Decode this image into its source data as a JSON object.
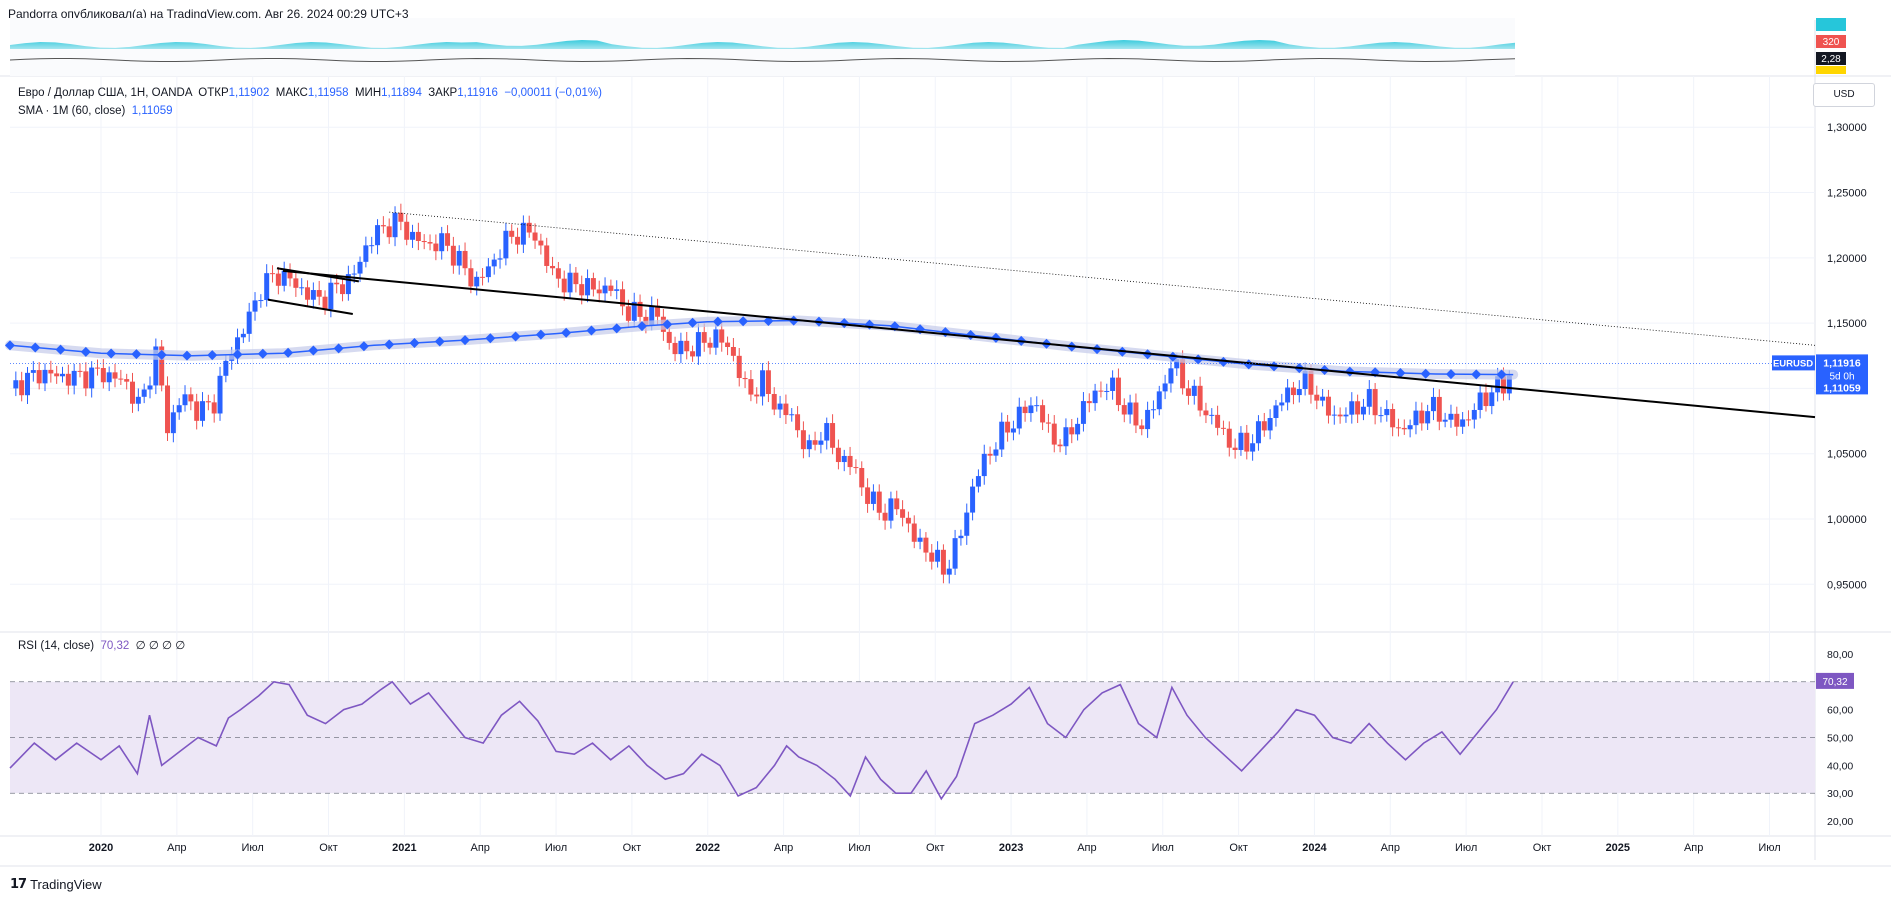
{
  "header": {
    "published_text": "Pandorra опубликовал(а) на TradingView.com, Авг 26, 2024 00:29 UTC+3"
  },
  "legend": {
    "symbol_desc": "Евро / Доллар США, 1H, OANDA",
    "open_label": "ОТКР",
    "open_value": "1,11902",
    "high_label": "МАКС",
    "high_value": "1,11958",
    "low_label": "МИН",
    "low_value": "1,11894",
    "close_label": "ЗАКР",
    "close_value": "1,11916",
    "change_value": "−0,00011 (−0,01%)",
    "sma_label": "SMA · 1M (60, close)",
    "sma_value": "1,11059"
  },
  "rsi_legend": {
    "label": "RSI (14, close)",
    "value": "70,32",
    "extras": "∅ ∅ ∅ ∅"
  },
  "currency_button": "USD",
  "footer": {
    "brand": "TradingView"
  },
  "colors": {
    "up": "#2962ff",
    "down": "#ef5350",
    "sma": "#2962ff",
    "rsi": "#7e57c2",
    "rsi_band": "#ede7f6",
    "grid": "#f0f3fa",
    "trend": "#000000",
    "badge_bg": "#2962ff",
    "badge_dark": "#131722",
    "badge_red": "#ef5350",
    "badge_yellow": "#ffd600",
    "volume_fill": "#26c6da"
  },
  "top_panel": {
    "badges": [
      "320",
      "2,28"
    ]
  },
  "chart_data": [
    {
      "type": "candlestick",
      "title": "Евро / Доллар США, OANDA",
      "symbol": "EURUSD",
      "price_axis_ticks": [
        "1,30000",
        "1,25000",
        "1,20000",
        "1,15000",
        "1,10000",
        "1,05000",
        "1,00000",
        "0,95000"
      ],
      "price_axis_values": [
        1.3,
        1.25,
        1.2,
        1.15,
        1.1,
        1.05,
        1.0,
        0.95
      ],
      "ylim": [
        0.915,
        1.34
      ],
      "time_axis_labels": [
        "2020",
        "Апр",
        "Июл",
        "Окт",
        "2021",
        "Апр",
        "Июл",
        "Окт",
        "2022",
        "Апр",
        "Июл",
        "Окт",
        "2023",
        "Апр",
        "Июл",
        "Окт",
        "2024",
        "Апр",
        "Июл",
        "Окт",
        "2025",
        "Апр",
        "Июл"
      ],
      "time_axis_years": [
        2020.0,
        2020.25,
        2020.5,
        2020.75,
        2021.0,
        2021.25,
        2021.5,
        2021.75,
        2022.0,
        2022.25,
        2022.5,
        2022.75,
        2023.0,
        2023.25,
        2023.5,
        2023.75,
        2024.0,
        2024.25,
        2024.5,
        2024.75,
        2025.0,
        2025.25,
        2025.5
      ],
      "xlim": [
        2019.7,
        2025.65
      ],
      "last_price": {
        "symbol": "EURUSD",
        "value": "1,11916",
        "countdown": "5d 0h",
        "sma_value": "1,11059"
      },
      "price_path": [
        [
          2019.7,
          1.1
        ],
        [
          2019.8,
          1.112
        ],
        [
          2019.9,
          1.108
        ],
        [
          2020.0,
          1.112
        ],
        [
          2020.08,
          1.105
        ],
        [
          2020.13,
          1.085
        ],
        [
          2020.18,
          1.128
        ],
        [
          2020.22,
          1.07
        ],
        [
          2020.27,
          1.095
        ],
        [
          2020.32,
          1.082
        ],
        [
          2020.37,
          1.088
        ],
        [
          2020.42,
          1.125
        ],
        [
          2020.47,
          1.145
        ],
        [
          2020.53,
          1.178
        ],
        [
          2020.58,
          1.188
        ],
        [
          2020.63,
          1.182
        ],
        [
          2020.68,
          1.172
        ],
        [
          2020.73,
          1.168
        ],
        [
          2020.78,
          1.178
        ],
        [
          2020.83,
          1.185
        ],
        [
          2020.88,
          1.212
        ],
        [
          2020.93,
          1.223
        ],
        [
          2020.98,
          1.228
        ],
        [
          2021.03,
          1.215
        ],
        [
          2021.08,
          1.21
        ],
        [
          2021.13,
          1.212
        ],
        [
          2021.18,
          1.198
        ],
        [
          2021.23,
          1.18
        ],
        [
          2021.28,
          1.192
        ],
        [
          2021.33,
          1.212
        ],
        [
          2021.38,
          1.22
        ],
        [
          2021.43,
          1.218
        ],
        [
          2021.48,
          1.19
        ],
        [
          2021.53,
          1.18
        ],
        [
          2021.58,
          1.18
        ],
        [
          2021.63,
          1.175
        ],
        [
          2021.68,
          1.178
        ],
        [
          2021.73,
          1.16
        ],
        [
          2021.78,
          1.155
        ],
        [
          2021.83,
          1.158
        ],
        [
          2021.88,
          1.13
        ],
        [
          2021.93,
          1.13
        ],
        [
          2021.98,
          1.135
        ],
        [
          2022.03,
          1.14
        ],
        [
          2022.08,
          1.128
        ],
        [
          2022.13,
          1.095
        ],
        [
          2022.18,
          1.105
        ],
        [
          2022.23,
          1.085
        ],
        [
          2022.28,
          1.078
        ],
        [
          2022.33,
          1.05
        ],
        [
          2022.38,
          1.07
        ],
        [
          2022.43,
          1.048
        ],
        [
          2022.48,
          1.04
        ],
        [
          2022.53,
          1.015
        ],
        [
          2022.58,
          1.005
        ],
        [
          2022.63,
          1.01
        ],
        [
          2022.68,
          0.985
        ],
        [
          2022.73,
          0.975
        ],
        [
          2022.78,
          0.96
        ],
        [
          2022.83,
          0.985
        ],
        [
          2022.88,
          1.03
        ],
        [
          2022.93,
          1.052
        ],
        [
          2022.98,
          1.068
        ],
        [
          2023.03,
          1.08
        ],
        [
          2023.08,
          1.09
        ],
        [
          2023.13,
          1.062
        ],
        [
          2023.18,
          1.06
        ],
        [
          2023.23,
          1.082
        ],
        [
          2023.28,
          1.098
        ],
        [
          2023.33,
          1.102
        ],
        [
          2023.38,
          1.082
        ],
        [
          2023.43,
          1.072
        ],
        [
          2023.48,
          1.09
        ],
        [
          2023.53,
          1.12
        ],
        [
          2023.58,
          1.1
        ],
        [
          2023.63,
          1.085
        ],
        [
          2023.68,
          1.072
        ],
        [
          2023.73,
          1.055
        ],
        [
          2023.78,
          1.058
        ],
        [
          2023.83,
          1.07
        ],
        [
          2023.88,
          1.088
        ],
        [
          2023.93,
          1.1
        ],
        [
          2023.98,
          1.105
        ],
        [
          2024.03,
          1.085
        ],
        [
          2024.08,
          1.078
        ],
        [
          2024.13,
          1.085
        ],
        [
          2024.18,
          1.09
        ],
        [
          2024.23,
          1.08
        ],
        [
          2024.28,
          1.068
        ],
        [
          2024.33,
          1.075
        ],
        [
          2024.38,
          1.086
        ],
        [
          2024.43,
          1.078
        ],
        [
          2024.48,
          1.072
        ],
        [
          2024.53,
          1.085
        ],
        [
          2024.58,
          1.098
        ],
        [
          2024.63,
          1.103
        ],
        [
          2024.655,
          1.119
        ]
      ],
      "sma_path": [
        [
          2019.7,
          1.133
        ],
        [
          2020.0,
          1.127
        ],
        [
          2020.3,
          1.125
        ],
        [
          2020.6,
          1.127
        ],
        [
          2020.9,
          1.133
        ],
        [
          2021.2,
          1.137
        ],
        [
          2021.5,
          1.142
        ],
        [
          2021.8,
          1.148
        ],
        [
          2022.0,
          1.151
        ],
        [
          2022.3,
          1.152
        ],
        [
          2022.6,
          1.148
        ],
        [
          2022.9,
          1.14
        ],
        [
          2023.2,
          1.132
        ],
        [
          2023.5,
          1.125
        ],
        [
          2023.8,
          1.118
        ],
        [
          2024.1,
          1.113
        ],
        [
          2024.4,
          1.111
        ],
        [
          2024.655,
          1.1106
        ]
      ],
      "trendlines": [
        {
          "name": "main-trend",
          "style": "solid",
          "from": [
            2020.6,
            1.19
          ],
          "to": [
            2025.65,
            1.078
          ]
        },
        {
          "name": "upper-trend",
          "style": "dotted",
          "from": [
            2020.95,
            1.235
          ],
          "to": [
            2025.65,
            1.133
          ]
        },
        {
          "name": "flag-top",
          "style": "solid",
          "from": [
            2020.58,
            1.192
          ],
          "to": [
            2020.85,
            1.182
          ]
        },
        {
          "name": "flag-bottom",
          "style": "solid",
          "from": [
            2020.55,
            1.168
          ],
          "to": [
            2020.83,
            1.157
          ]
        }
      ]
    },
    {
      "type": "line",
      "title": "RSI (14, close)",
      "value_axis_ticks": [
        "80,00",
        "70,32",
        "60,00",
        "50,00",
        "40,00",
        "30,00",
        "20,00"
      ],
      "value_axis_values": [
        80,
        70.32,
        60,
        50,
        40,
        30,
        20
      ],
      "ylim": [
        15,
        85
      ],
      "levels": [
        70,
        50,
        30
      ],
      "series": [
        {
          "name": "RSI",
          "points": [
            [
              2019.7,
              39
            ],
            [
              2019.78,
              48
            ],
            [
              2019.85,
              42
            ],
            [
              2019.92,
              48
            ],
            [
              2020.0,
              42
            ],
            [
              2020.06,
              47
            ],
            [
              2020.12,
              37
            ],
            [
              2020.16,
              58
            ],
            [
              2020.2,
              40
            ],
            [
              2020.26,
              45
            ],
            [
              2020.32,
              50
            ],
            [
              2020.38,
              47
            ],
            [
              2020.42,
              57
            ],
            [
              2020.46,
              60
            ],
            [
              2020.52,
              65
            ],
            [
              2020.57,
              70
            ],
            [
              2020.62,
              69
            ],
            [
              2020.68,
              58
            ],
            [
              2020.74,
              55
            ],
            [
              2020.8,
              60
            ],
            [
              2020.86,
              62
            ],
            [
              2020.92,
              67
            ],
            [
              2020.96,
              70
            ],
            [
              2021.02,
              62
            ],
            [
              2021.08,
              66
            ],
            [
              2021.14,
              58
            ],
            [
              2021.2,
              50
            ],
            [
              2021.26,
              48
            ],
            [
              2021.32,
              58
            ],
            [
              2021.38,
              63
            ],
            [
              2021.44,
              56
            ],
            [
              2021.5,
              45
            ],
            [
              2021.56,
              44
            ],
            [
              2021.62,
              48
            ],
            [
              2021.68,
              42
            ],
            [
              2021.74,
              47
            ],
            [
              2021.8,
              40
            ],
            [
              2021.86,
              35
            ],
            [
              2021.92,
              37
            ],
            [
              2021.98,
              44
            ],
            [
              2022.04,
              40
            ],
            [
              2022.1,
              29
            ],
            [
              2022.16,
              32
            ],
            [
              2022.22,
              40
            ],
            [
              2022.26,
              47
            ],
            [
              2022.3,
              43
            ],
            [
              2022.36,
              40
            ],
            [
              2022.42,
              35
            ],
            [
              2022.47,
              29
            ],
            [
              2022.52,
              43
            ],
            [
              2022.57,
              35
            ],
            [
              2022.62,
              30
            ],
            [
              2022.67,
              30
            ],
            [
              2022.72,
              38
            ],
            [
              2022.77,
              28
            ],
            [
              2022.82,
              36
            ],
            [
              2022.88,
              55
            ],
            [
              2022.94,
              58
            ],
            [
              2023.0,
              62
            ],
            [
              2023.06,
              68
            ],
            [
              2023.12,
              55
            ],
            [
              2023.18,
              50
            ],
            [
              2023.24,
              60
            ],
            [
              2023.3,
              66
            ],
            [
              2023.36,
              69
            ],
            [
              2023.42,
              55
            ],
            [
              2023.48,
              50
            ],
            [
              2023.53,
              68
            ],
            [
              2023.58,
              58
            ],
            [
              2023.64,
              50
            ],
            [
              2023.7,
              44
            ],
            [
              2023.76,
              38
            ],
            [
              2023.82,
              45
            ],
            [
              2023.88,
              52
            ],
            [
              2023.94,
              60
            ],
            [
              2024.0,
              58
            ],
            [
              2024.06,
              50
            ],
            [
              2024.12,
              48
            ],
            [
              2024.18,
              55
            ],
            [
              2024.24,
              48
            ],
            [
              2024.3,
              42
            ],
            [
              2024.36,
              48
            ],
            [
              2024.42,
              52
            ],
            [
              2024.48,
              44
            ],
            [
              2024.54,
              52
            ],
            [
              2024.6,
              60
            ],
            [
              2024.655,
              70
            ]
          ]
        }
      ]
    }
  ]
}
